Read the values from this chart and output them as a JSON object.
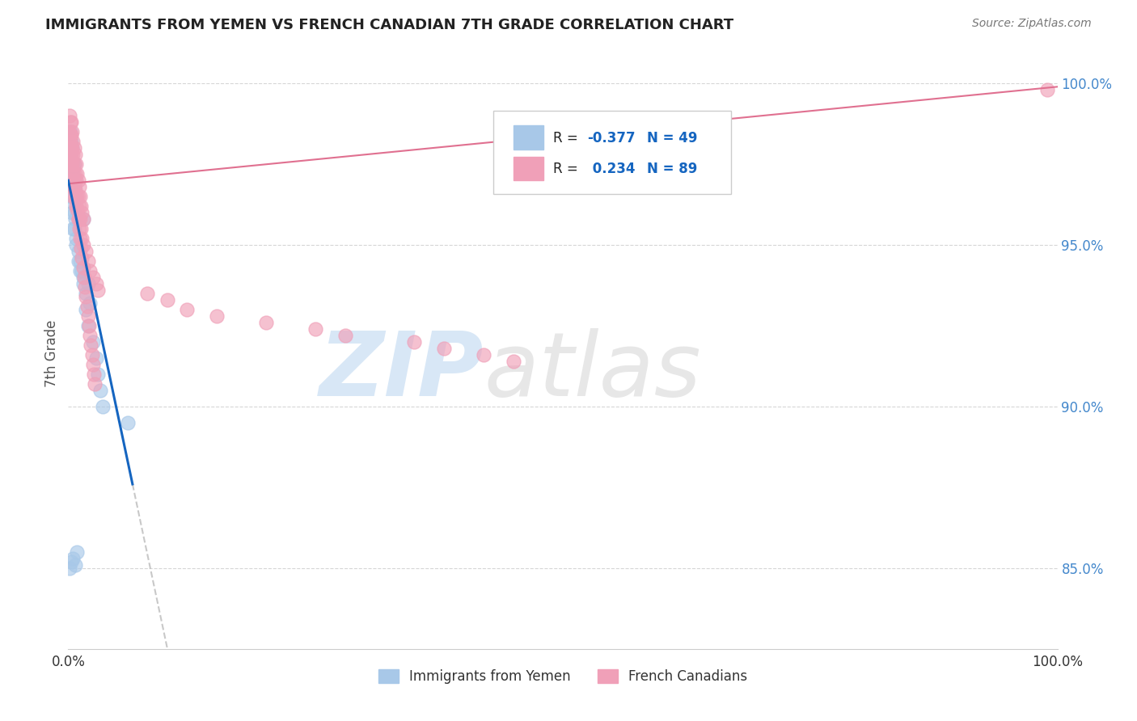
{
  "title": "IMMIGRANTS FROM YEMEN VS FRENCH CANADIAN 7TH GRADE CORRELATION CHART",
  "source_text": "Source: ZipAtlas.com",
  "ylabel": "7th Grade",
  "watermark_zip": "ZIP",
  "watermark_atlas": "atlas",
  "xlim": [
    0.0,
    1.0
  ],
  "ylim": [
    0.825,
    1.008
  ],
  "yticks": [
    0.85,
    0.9,
    0.95,
    1.0
  ],
  "ytick_labels": [
    "85.0%",
    "90.0%",
    "95.0%",
    "100.0%"
  ],
  "xtick_labels": [
    "0.0%",
    "",
    "",
    "",
    "",
    "100.0%"
  ],
  "blue_color": "#A8C8E8",
  "pink_color": "#F0A0B8",
  "blue_line_color": "#1565C0",
  "pink_line_color": "#E07090",
  "dashed_line_color": "#BBBBBB",
  "grid_color": "#CCCCCC",
  "legend_blue_text_r": "R = ",
  "legend_blue_val": "-0.377",
  "legend_blue_n": "N = 49",
  "legend_pink_text_r": "R =  ",
  "legend_pink_val": "0.234",
  "legend_pink_n": "N = 89",
  "tick_color": "#4488CC",
  "figsize": [
    14.06,
    8.92
  ],
  "dpi": 100
}
